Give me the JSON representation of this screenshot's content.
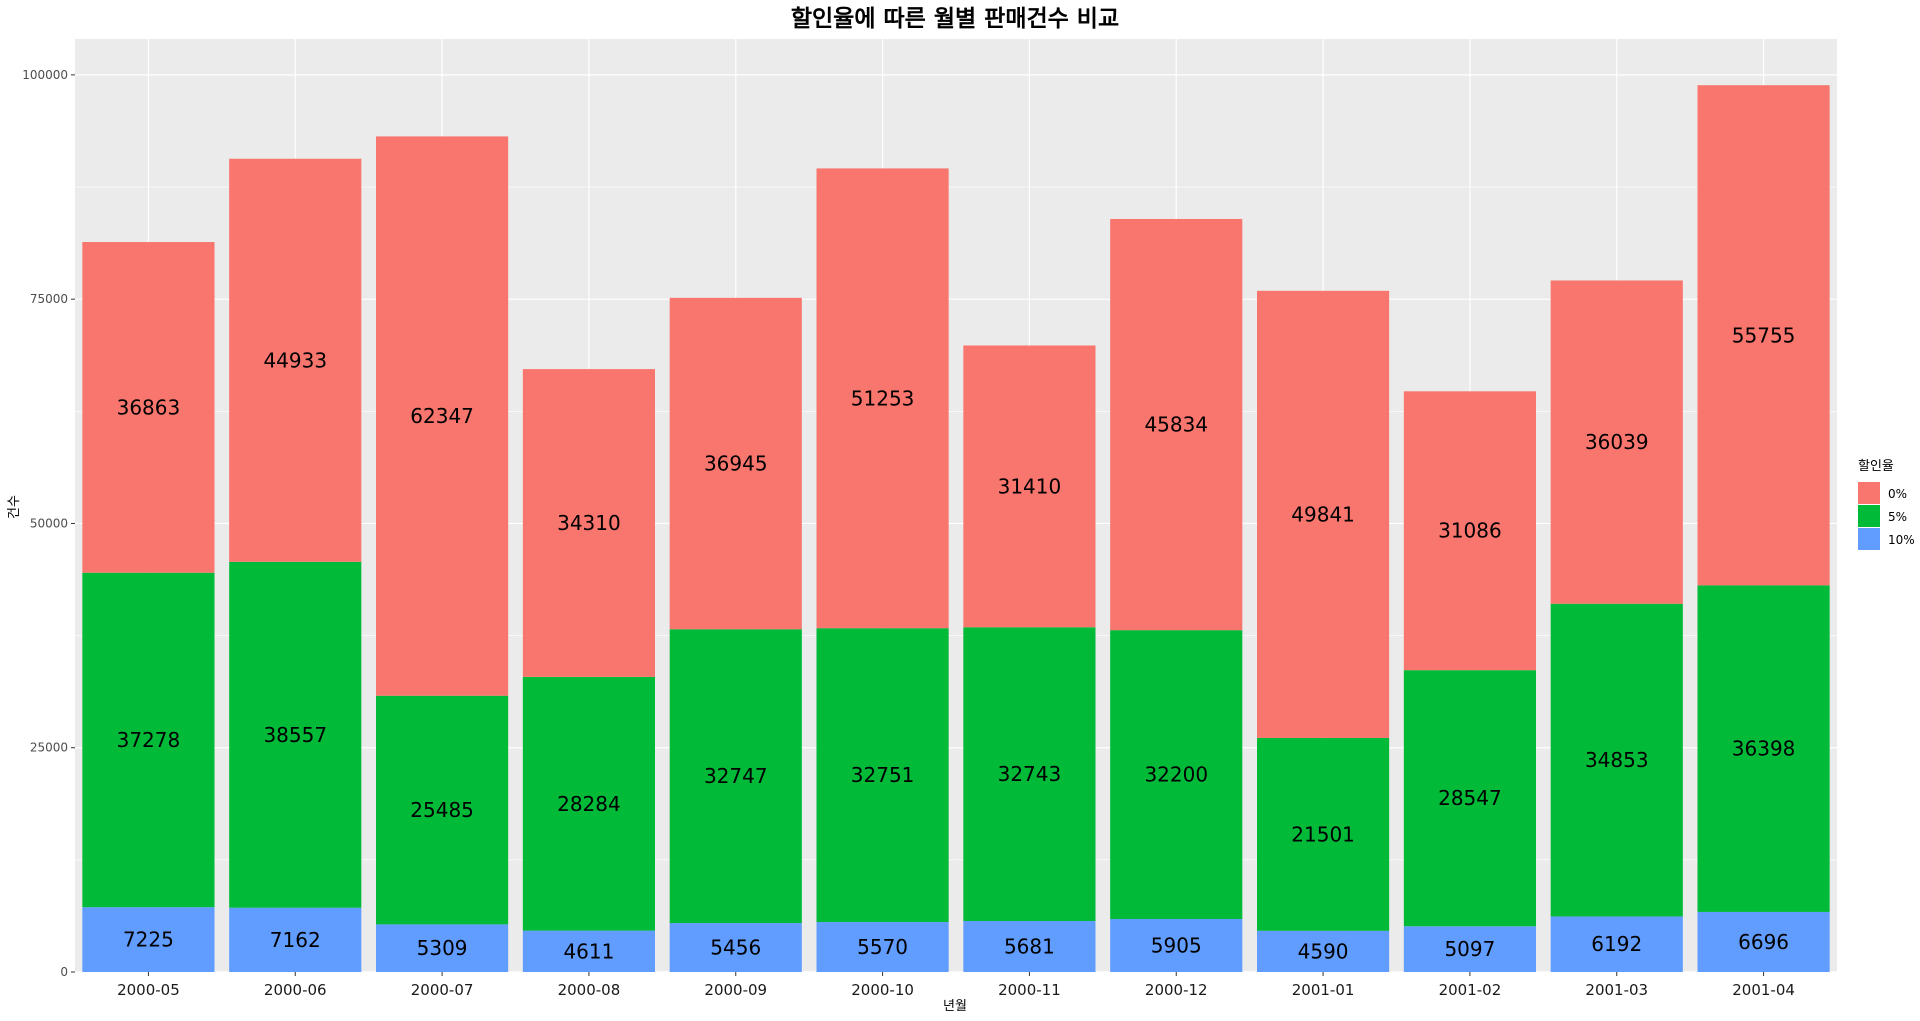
{
  "chart_data": {
    "type": "bar",
    "stacked": true,
    "title": "할인율에 따른 월별 판매건수 비교",
    "xlabel": "년월",
    "ylabel": "건수",
    "ylim": [
      0,
      104000
    ],
    "yticks": [
      0,
      25000,
      50000,
      75000,
      100000
    ],
    "yticklabels": [
      "0",
      "25000",
      "50000",
      "75000",
      "100000"
    ],
    "categories": [
      "2000-05",
      "2000-06",
      "2000-07",
      "2000-08",
      "2000-09",
      "2000-10",
      "2000-11",
      "2000-12",
      "2001-01",
      "2001-02",
      "2001-03",
      "2001-04"
    ],
    "series": [
      {
        "name": "10%",
        "color": "#619CFF",
        "values": [
          7225,
          7162,
          5309,
          4611,
          5456,
          5570,
          5681,
          5905,
          4590,
          5097,
          6192,
          6696
        ]
      },
      {
        "name": "5%",
        "color": "#00BA38",
        "values": [
          37278,
          38557,
          25485,
          28284,
          32747,
          32751,
          32743,
          32200,
          21501,
          28547,
          34853,
          36398
        ]
      },
      {
        "name": "0%",
        "color": "#F8766D",
        "values": [
          36863,
          44933,
          62347,
          34310,
          36945,
          51253,
          31410,
          45834,
          49841,
          31086,
          36039,
          55755
        ]
      }
    ],
    "legend": {
      "title": "할인율",
      "position": "right",
      "entries": [
        {
          "label": "0%",
          "color": "#F8766D"
        },
        {
          "label": "5%",
          "color": "#00BA38"
        },
        {
          "label": "10%",
          "color": "#619CFF"
        }
      ]
    },
    "grid": true,
    "panel_background": "#EBEBEB"
  }
}
